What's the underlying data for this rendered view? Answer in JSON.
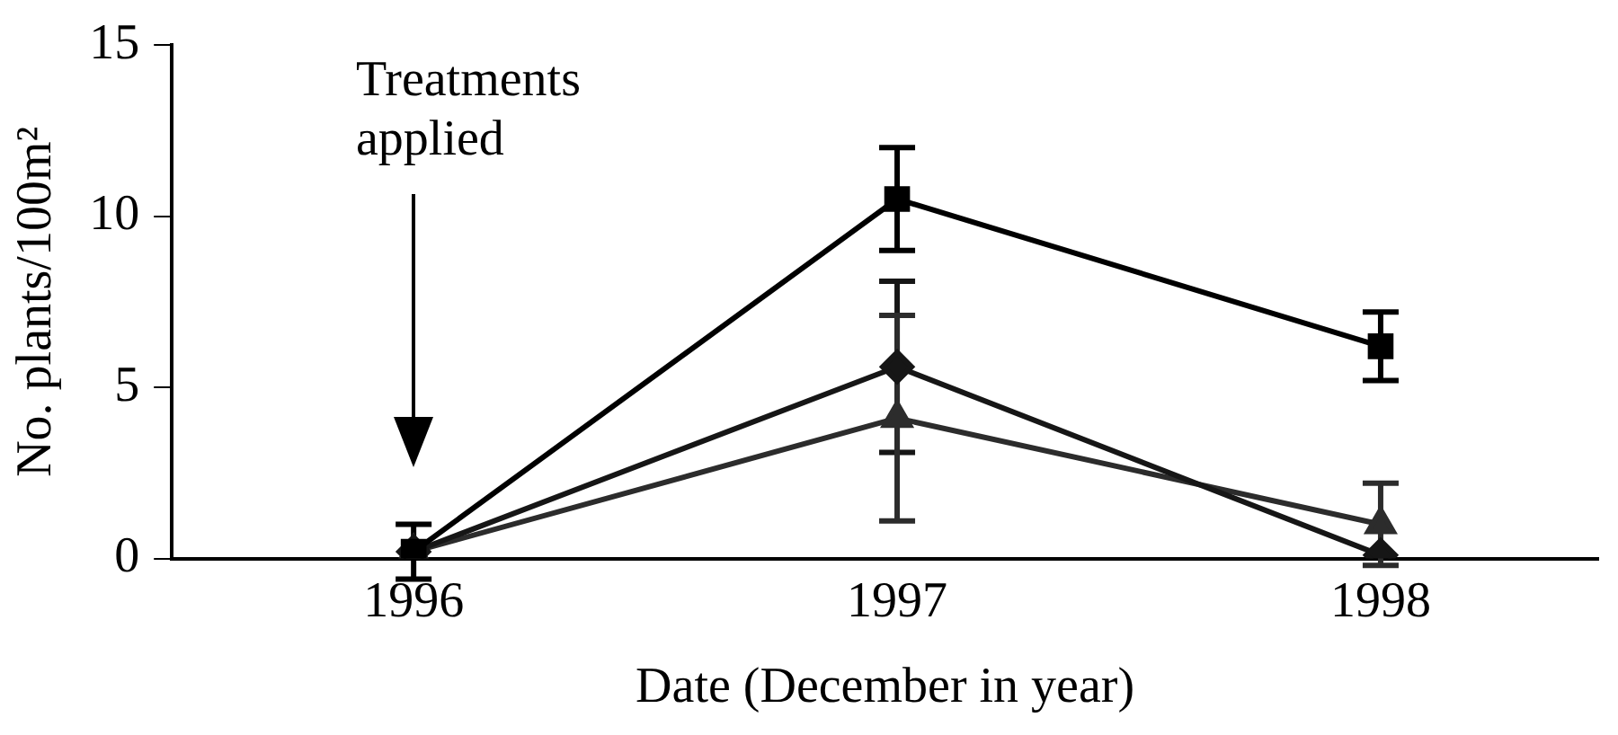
{
  "chart_data": {
    "type": "line",
    "xlabel": "Date (December in year)",
    "ylabel": "No. plants/100m²",
    "x": [
      1996,
      1997,
      1998
    ],
    "xlim": [
      1995.5,
      1998.45
    ],
    "xticks": [
      1996,
      1997,
      1998
    ],
    "ylim": [
      0,
      15
    ],
    "yticks": [
      0,
      5,
      10,
      15
    ],
    "grid": false,
    "legend": false,
    "line_style": "solid",
    "series": [
      {
        "color": "#000000",
        "marker": "square",
        "values": [
          0.2,
          10.5,
          6.2
        ],
        "errors": [
          0.8,
          1.5,
          1.0
        ]
      },
      {
        "color": "#161616",
        "marker": "diamond",
        "values": [
          0.2,
          5.6,
          0.1
        ],
        "errors": [
          null,
          2.5,
          null
        ]
      },
      {
        "color": "#2c2c2c",
        "marker": "triangle",
        "values": [
          0.2,
          4.1,
          1.0
        ],
        "errors": [
          null,
          3.0,
          1.2
        ]
      }
    ],
    "annotations": [
      "Treatments applied"
    ]
  }
}
